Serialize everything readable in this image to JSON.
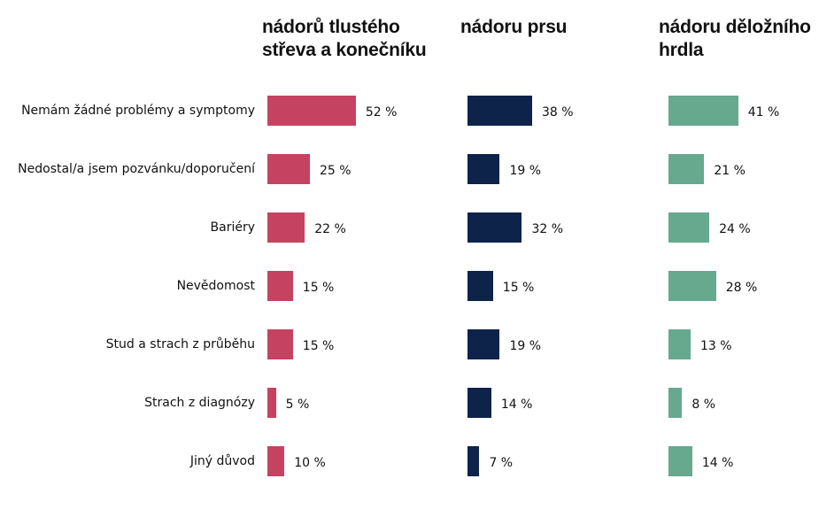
{
  "chart_data": {
    "type": "bar",
    "orientation": "horizontal",
    "categories": [
      "Nemám žádné problémy a symptomy",
      "Nedostal/a jsem pozvánku/doporučení",
      "Bariéry",
      "Nevědomost",
      "Stud a strach z průběhu",
      "Strach z diagnózy",
      "Jiný důvod"
    ],
    "unit": "%",
    "series": [
      {
        "name": "nádorů tlustého střeva a konečníku",
        "color": "#c54361",
        "values": [
          52,
          25,
          22,
          15,
          15,
          5,
          10
        ],
        "labels": [
          "52 %",
          "25 %",
          "22 %",
          "15 %",
          "15 %",
          "5 %",
          "10 %"
        ]
      },
      {
        "name": "nádoru prsu",
        "color": "#0e234a",
        "values": [
          38,
          19,
          32,
          15,
          19,
          14,
          7
        ],
        "labels": [
          "38 %",
          "19 %",
          "32 %",
          "15 %",
          "19 %",
          "14 %",
          "7 %"
        ]
      },
      {
        "name": "nádoru děložního hrdla",
        "color": "#66a98e",
        "values": [
          41,
          21,
          24,
          28,
          13,
          8,
          14
        ],
        "labels": [
          "41 %",
          "21 %",
          "24 %",
          "28 %",
          "13 %",
          "8 %",
          "14 %"
        ]
      }
    ],
    "panel_titles": [
      [
        "nádorů tlustého",
        "střeva a konečníku"
      ],
      [
        "nádoru prsu"
      ],
      [
        "nádoru děložního",
        "hrdla"
      ]
    ],
    "legend": "none",
    "grid": false
  }
}
